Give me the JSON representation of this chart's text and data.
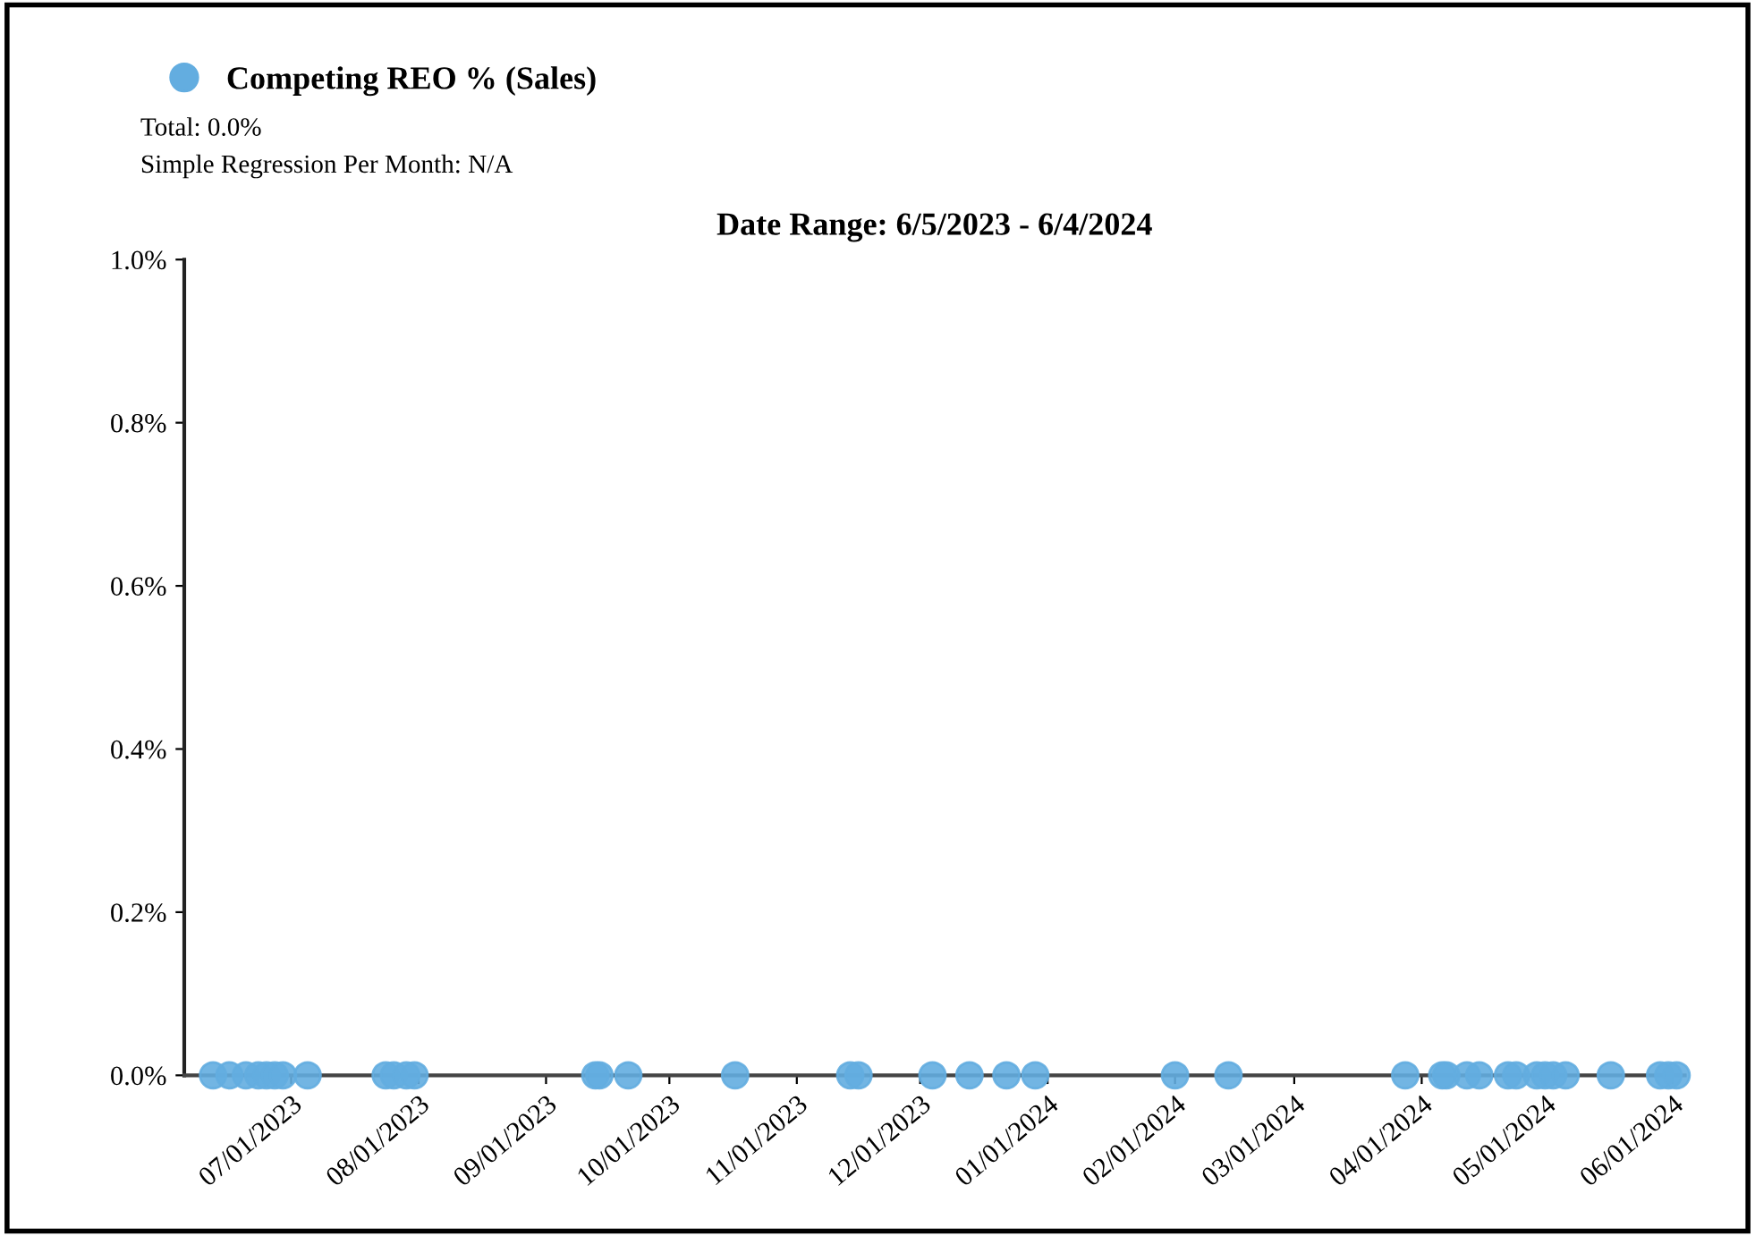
{
  "chart_data": {
    "type": "scatter",
    "title": "Date Range: 6/5/2023 - 6/4/2024",
    "annotations": [
      "Total: 0.0%",
      "Simple Regression Per Month: N/A"
    ],
    "series": [
      {
        "name": "Competing REO % (Sales)",
        "color": "#63ade0",
        "x": [
          "2023-06-12",
          "2023-06-16",
          "2023-06-20",
          "2023-06-23",
          "2023-06-25",
          "2023-06-27",
          "2023-06-29",
          "2023-07-05",
          "2023-07-24",
          "2023-07-26",
          "2023-07-29",
          "2023-07-31",
          "2023-09-13",
          "2023-09-14",
          "2023-09-21",
          "2023-10-17",
          "2023-11-14",
          "2023-11-16",
          "2023-12-04",
          "2023-12-13",
          "2023-12-22",
          "2023-12-29",
          "2024-02-01",
          "2024-02-14",
          "2024-03-28",
          "2024-04-06",
          "2024-04-07",
          "2024-04-12",
          "2024-04-15",
          "2024-04-22",
          "2024-04-24",
          "2024-04-29",
          "2024-05-01",
          "2024-05-03",
          "2024-05-06",
          "2024-05-17",
          "2024-05-29",
          "2024-05-31",
          "2024-06-02"
        ],
        "values": [
          0,
          0,
          0,
          0,
          0,
          0,
          0,
          0,
          0,
          0,
          0,
          0,
          0,
          0,
          0,
          0,
          0,
          0,
          0,
          0,
          0,
          0,
          0,
          0,
          0,
          0,
          0,
          0,
          0,
          0,
          0,
          0,
          0,
          0,
          0,
          0,
          0,
          0,
          0
        ]
      }
    ],
    "xlim": [
      "2023-06-05",
      "2024-06-04"
    ],
    "xticks": [
      {
        "value": "2023-07-01",
        "label": "07/01/2023"
      },
      {
        "value": "2023-08-01",
        "label": "08/01/2023"
      },
      {
        "value": "2023-09-01",
        "label": "09/01/2023"
      },
      {
        "value": "2023-10-01",
        "label": "10/01/2023"
      },
      {
        "value": "2023-11-01",
        "label": "11/01/2023"
      },
      {
        "value": "2023-12-01",
        "label": "12/01/2023"
      },
      {
        "value": "2024-01-01",
        "label": "01/01/2024"
      },
      {
        "value": "2024-02-01",
        "label": "02/01/2024"
      },
      {
        "value": "2024-03-01",
        "label": "03/01/2024"
      },
      {
        "value": "2024-04-01",
        "label": "04/01/2024"
      },
      {
        "value": "2024-05-01",
        "label": "05/01/2024"
      },
      {
        "value": "2024-06-01",
        "label": "06/01/2024"
      }
    ],
    "ylim": [
      0,
      1
    ],
    "yticks": [
      {
        "value": 0,
        "label": "0.0%"
      },
      {
        "value": 0.2,
        "label": "0.2%"
      },
      {
        "value": 0.4,
        "label": "0.4%"
      },
      {
        "value": 0.6,
        "label": "0.6%"
      },
      {
        "value": 0.8,
        "label": "0.8%"
      },
      {
        "value": 1,
        "label": "1.0%"
      }
    ],
    "grid": false,
    "legend": "top left",
    "marker": "circle"
  }
}
